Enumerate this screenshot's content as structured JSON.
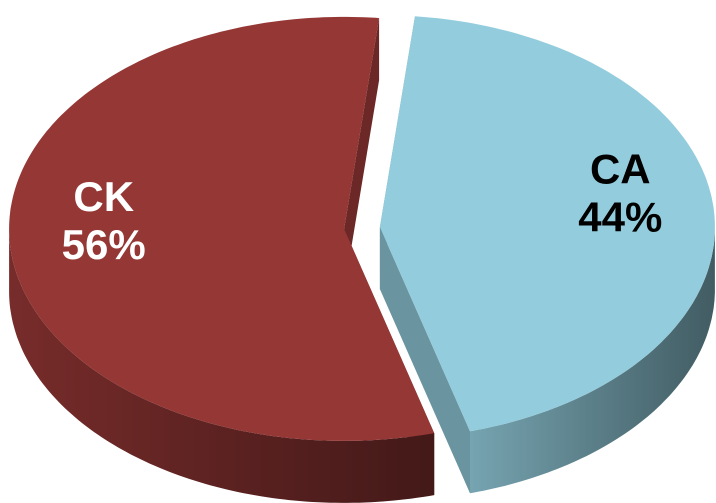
{
  "chart_data": {
    "type": "pie3d",
    "categories": [
      "CA",
      "CK"
    ],
    "values": [
      44,
      56
    ],
    "value_labels": [
      "44%",
      "56%"
    ],
    "colors": [
      "#93cddd",
      "#953735"
    ]
  }
}
